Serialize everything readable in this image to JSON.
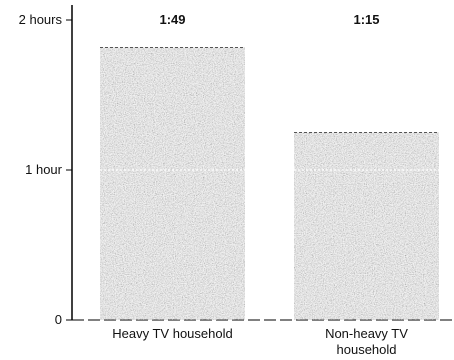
{
  "chart_data": {
    "type": "bar",
    "title": "",
    "xlabel": "",
    "ylabel": "",
    "categories": [
      "Heavy TV household",
      "Non-heavy TV household"
    ],
    "category_lines": [
      [
        "Heavy TV household"
      ],
      [
        "Non-heavy TV",
        "household"
      ]
    ],
    "values_minutes": [
      109,
      75
    ],
    "data_labels": [
      "1:49",
      "1:15"
    ],
    "y_ticks": [
      {
        "value_minutes": 0,
        "label": "0"
      },
      {
        "value_minutes": 60,
        "label": "1 hour"
      },
      {
        "value_minutes": 120,
        "label": "2 hours"
      }
    ],
    "ylim_minutes": [
      0,
      120
    ],
    "grid": false,
    "legend": "none",
    "bar_color": "#8a8a8a"
  }
}
